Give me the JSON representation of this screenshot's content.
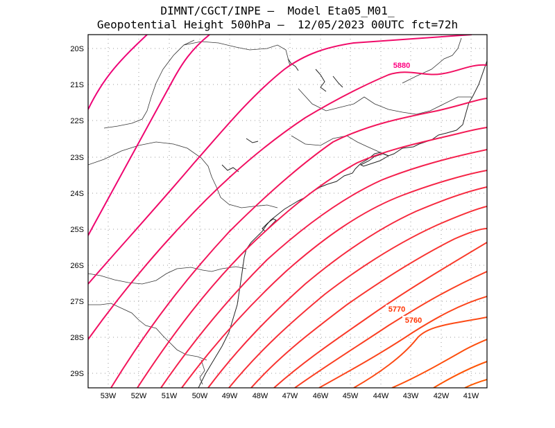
{
  "header": {
    "line1": "DIMNT/CGCT/INPE –  Model Eta05_M01_",
    "line2": "Geopotential Height 500hPa –  12/05/2023 00UTC fct=72h"
  },
  "axes": {
    "lat_labels": [
      "20S",
      "21S",
      "22S",
      "23S",
      "24S",
      "25S",
      "26S",
      "27S",
      "28S",
      "29S"
    ],
    "lon_labels": [
      "53W",
      "52W",
      "51W",
      "50W",
      "49W",
      "48W",
      "47W",
      "46W",
      "45W",
      "44W",
      "43W",
      "42W",
      "41W"
    ]
  },
  "chart_data": {
    "type": "contour-map",
    "variable": "Geopotential Height 500hPa",
    "units": "m",
    "contour_interval": 10,
    "lat_range": [
      -29.4,
      -19.6
    ],
    "lon_range": [
      -53.6,
      -40.6
    ],
    "contour_levels": [
      5880,
      5870,
      5860,
      5850,
      5840,
      5830,
      5820,
      5810,
      5800,
      5790,
      5780,
      5770,
      5760,
      5750,
      5740,
      5730,
      5720,
      5710
    ],
    "labeled_contours": [
      {
        "value": "5880",
        "color": "#ff0080"
      },
      {
        "value": "5770",
        "color": "#ff3300"
      },
      {
        "value": "5760",
        "color": "#ff3300"
      }
    ],
    "color_scale": {
      "high": "#ee0077",
      "low": "#ff5a00"
    }
  }
}
